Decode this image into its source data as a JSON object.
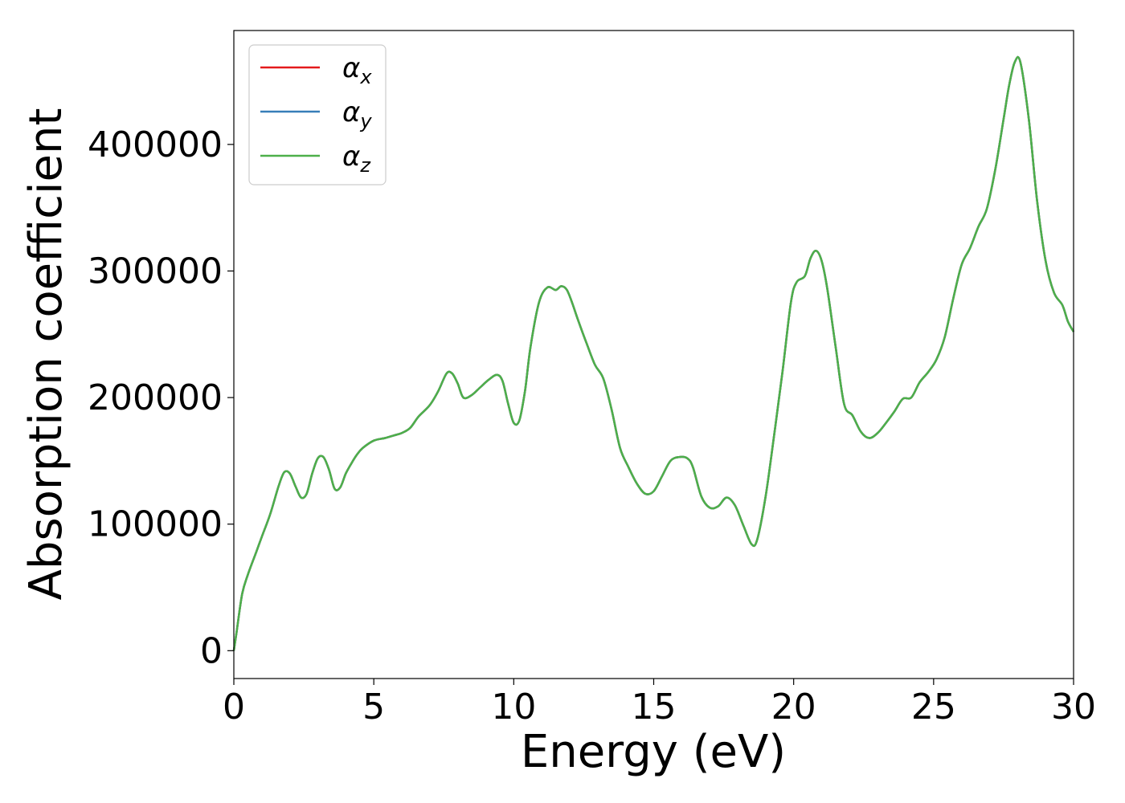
{
  "chart_data": {
    "type": "line",
    "xlabel": "Energy (eV)",
    "ylabel": "Absorption coefficient",
    "xlim": [
      0,
      30
    ],
    "ylim": [
      -22000,
      490000
    ],
    "xticks": [
      0,
      5,
      10,
      15,
      20,
      25,
      30
    ],
    "xtick_labels": [
      "0",
      "5",
      "10",
      "15",
      "20",
      "25",
      "30"
    ],
    "yticks": [
      0,
      100000,
      200000,
      300000,
      400000
    ],
    "ytick_labels": [
      "0",
      "100000",
      "200000",
      "300000",
      "400000"
    ],
    "grid": false,
    "legend_position": "top-left",
    "x": [
      0,
      0.1,
      0.3,
      0.5,
      0.8,
      1.0,
      1.3,
      1.6,
      1.8,
      2.0,
      2.2,
      2.4,
      2.6,
      2.8,
      3.0,
      3.2,
      3.4,
      3.6,
      3.8,
      4.0,
      4.2,
      4.4,
      4.6,
      5.0,
      5.4,
      5.7,
      6.0,
      6.3,
      6.6,
      7.0,
      7.3,
      7.6,
      7.8,
      8.0,
      8.2,
      8.5,
      8.8,
      9.1,
      9.4,
      9.6,
      9.8,
      10.0,
      10.2,
      10.4,
      10.6,
      10.9,
      11.2,
      11.5,
      11.7,
      11.9,
      12.1,
      12.3,
      12.6,
      12.9,
      13.2,
      13.5,
      13.8,
      14.1,
      14.4,
      14.7,
      15.0,
      15.3,
      15.6,
      15.9,
      16.2,
      16.4,
      16.7,
      17.0,
      17.3,
      17.6,
      17.9,
      18.2,
      18.5,
      18.7,
      19.0,
      19.3,
      19.6,
      19.9,
      20.1,
      20.4,
      20.6,
      20.8,
      21.0,
      21.2,
      21.5,
      21.8,
      22.1,
      22.4,
      22.7,
      23.0,
      23.3,
      23.6,
      23.9,
      24.2,
      24.5,
      24.8,
      25.1,
      25.4,
      25.7,
      26.0,
      26.3,
      26.6,
      26.9,
      27.2,
      27.5,
      27.7,
      27.9,
      28.1,
      28.4,
      28.7,
      29.0,
      29.3,
      29.6,
      29.8,
      30.0
    ],
    "series": [
      {
        "name": "αx",
        "color": "#e41a1c",
        "values": [
          0,
          15000,
          45000,
          60000,
          78000,
          90000,
          108000,
          130000,
          141000,
          140000,
          130000,
          121000,
          124000,
          140000,
          152000,
          153000,
          143000,
          128000,
          129000,
          140000,
          148000,
          155000,
          160000,
          166000,
          168000,
          170000,
          172000,
          176000,
          185000,
          194000,
          205000,
          219000,
          219000,
          211000,
          200000,
          202000,
          208000,
          214000,
          218000,
          213000,
          195000,
          180000,
          182000,
          205000,
          240000,
          275000,
          287000,
          285000,
          288000,
          285000,
          274000,
          261000,
          243000,
          226000,
          215000,
          190000,
          160000,
          145000,
          132000,
          124000,
          126000,
          138000,
          150000,
          153000,
          152000,
          145000,
          122000,
          113000,
          114000,
          121000,
          115000,
          99000,
          84000,
          88000,
          122000,
          170000,
          220000,
          275000,
          291000,
          296000,
          310000,
          316000,
          308000,
          286000,
          240000,
          195000,
          186000,
          173000,
          168000,
          172000,
          180000,
          189000,
          199000,
          200000,
          212000,
          220000,
          230000,
          248000,
          278000,
          305000,
          318000,
          335000,
          349000,
          380000,
          420000,
          447000,
          465000,
          465000,
          420000,
          355000,
          308000,
          283000,
          273000,
          260000,
          252000
        ]
      },
      {
        "name": "αy",
        "color": "#377eb8",
        "values": [
          0,
          15000,
          45000,
          60000,
          78000,
          90000,
          108000,
          130000,
          141000,
          140000,
          130000,
          121000,
          124000,
          140000,
          152000,
          153000,
          143000,
          128000,
          129000,
          140000,
          148000,
          155000,
          160000,
          166000,
          168000,
          170000,
          172000,
          176000,
          185000,
          194000,
          205000,
          219000,
          219000,
          211000,
          200000,
          202000,
          208000,
          214000,
          218000,
          213000,
          195000,
          180000,
          182000,
          205000,
          240000,
          275000,
          287000,
          285000,
          288000,
          285000,
          274000,
          261000,
          243000,
          226000,
          215000,
          190000,
          160000,
          145000,
          132000,
          124000,
          126000,
          138000,
          150000,
          153000,
          152000,
          145000,
          122000,
          113000,
          114000,
          121000,
          115000,
          99000,
          84000,
          88000,
          122000,
          170000,
          220000,
          275000,
          291000,
          296000,
          310000,
          316000,
          308000,
          286000,
          240000,
          195000,
          186000,
          173000,
          168000,
          172000,
          180000,
          189000,
          199000,
          200000,
          212000,
          220000,
          230000,
          248000,
          278000,
          305000,
          318000,
          335000,
          349000,
          380000,
          420000,
          447000,
          465000,
          465000,
          420000,
          355000,
          308000,
          283000,
          273000,
          260000,
          252000
        ]
      },
      {
        "name": "αz",
        "color": "#4daf4a",
        "values": [
          0,
          15000,
          45000,
          60000,
          78000,
          90000,
          108000,
          130000,
          141000,
          140000,
          130000,
          121000,
          124000,
          140000,
          152000,
          153000,
          143000,
          128000,
          129000,
          140000,
          148000,
          155000,
          160000,
          166000,
          168000,
          170000,
          172000,
          176000,
          185000,
          194000,
          205000,
          219000,
          219000,
          211000,
          200000,
          202000,
          208000,
          214000,
          218000,
          213000,
          195000,
          180000,
          182000,
          205000,
          240000,
          275000,
          287000,
          285000,
          288000,
          285000,
          274000,
          261000,
          243000,
          226000,
          215000,
          190000,
          160000,
          145000,
          132000,
          124000,
          126000,
          138000,
          150000,
          153000,
          152000,
          145000,
          122000,
          113000,
          114000,
          121000,
          115000,
          99000,
          84000,
          88000,
          122000,
          170000,
          220000,
          275000,
          291000,
          296000,
          310000,
          316000,
          308000,
          286000,
          240000,
          195000,
          186000,
          173000,
          168000,
          172000,
          180000,
          189000,
          199000,
          200000,
          212000,
          220000,
          230000,
          248000,
          278000,
          305000,
          318000,
          335000,
          349000,
          380000,
          420000,
          447000,
          465000,
          465000,
          420000,
          355000,
          308000,
          283000,
          273000,
          260000,
          252000
        ]
      }
    ],
    "legend": [
      {
        "base": "α",
        "sub": "x"
      },
      {
        "base": "α",
        "sub": "y"
      },
      {
        "base": "α",
        "sub": "z"
      }
    ]
  }
}
